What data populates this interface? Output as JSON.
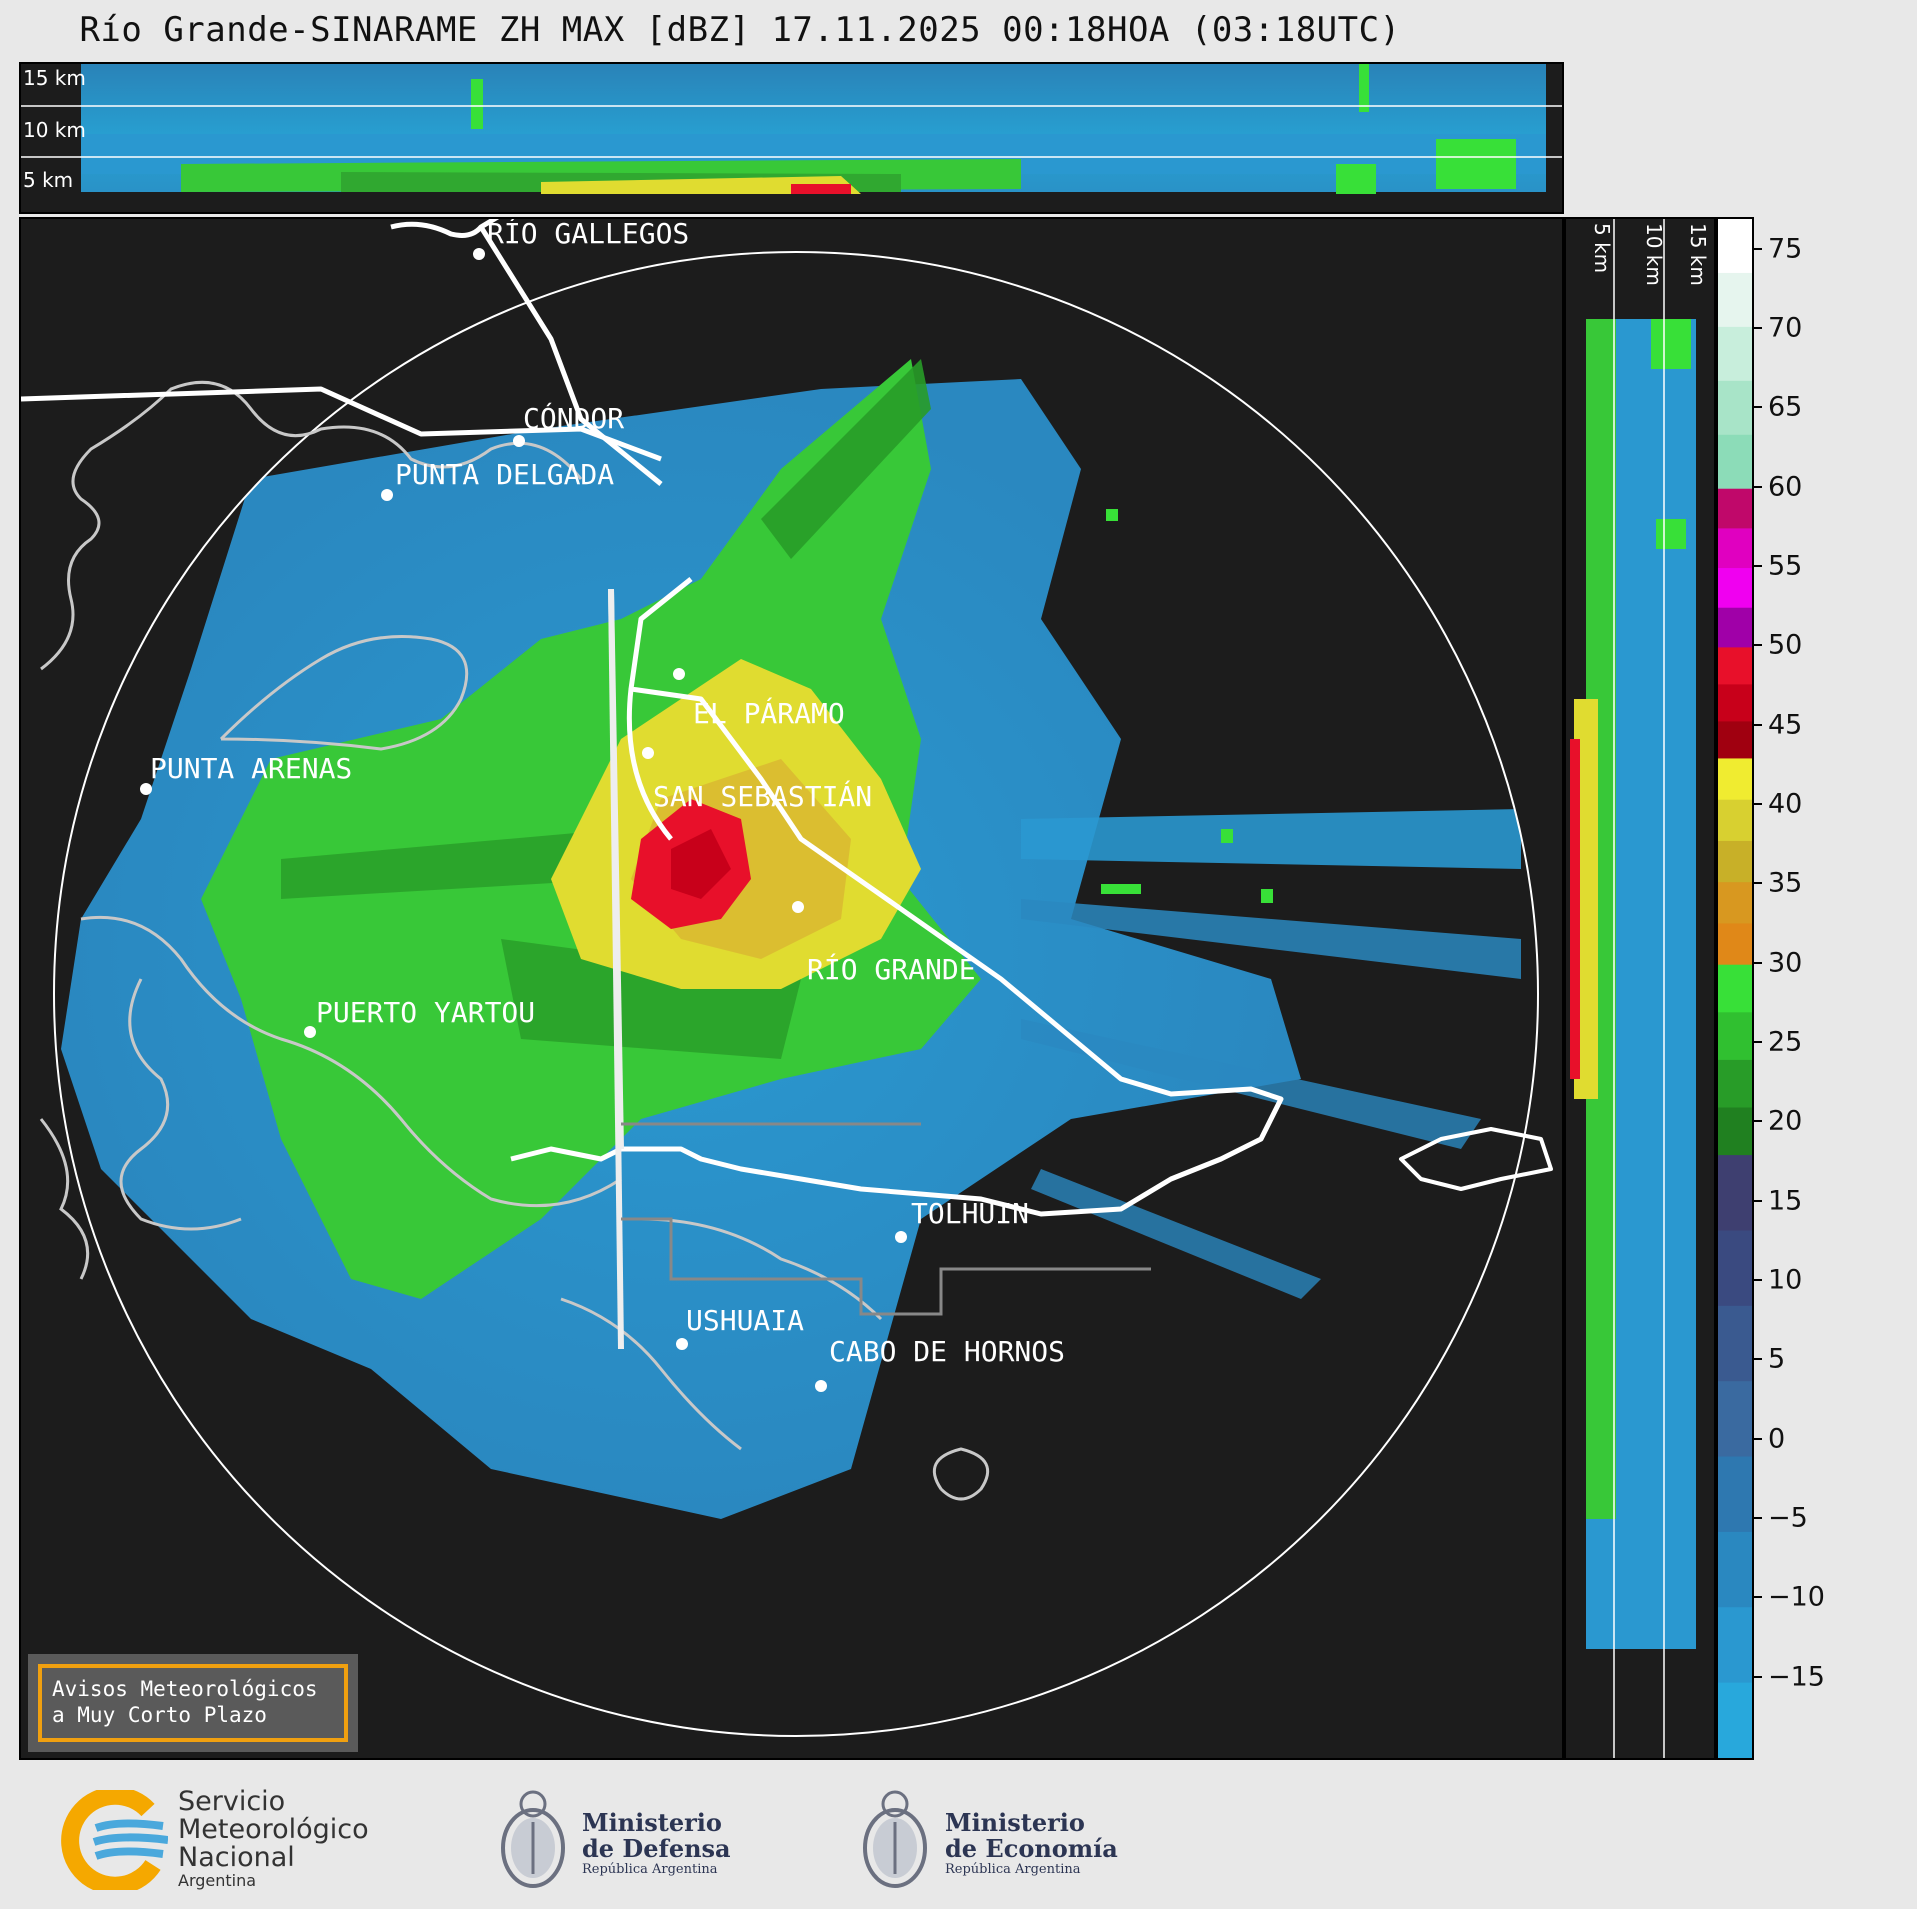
{
  "title": "Río Grande-SINARAME ZH MAX [dBZ] 17.11.2025 00:18HOA (03:18UTC)",
  "altitude_labels": [
    "15 km",
    "10 km",
    "5 km"
  ],
  "altitude_labels_side": [
    "5 km",
    "10 km",
    "15 km"
  ],
  "places": [
    {
      "name": "RÍO GALLEGOS"
    },
    {
      "name": "CÓNDOR"
    },
    {
      "name": "PUNTA DELGADA"
    },
    {
      "name": "PUNTA ARENAS"
    },
    {
      "name": "EL PÁRAMO"
    },
    {
      "name": "SAN SEBASTIÁN"
    },
    {
      "name": "RÍO GRANDE"
    },
    {
      "name": "PUERTO YARTOU"
    },
    {
      "name": "TOLHUIN"
    },
    {
      "name": "USHUAIA"
    },
    {
      "name": "CABO DE HORNOS"
    }
  ],
  "colorbar": {
    "unit": "dBZ",
    "ticks": [
      75,
      70,
      65,
      60,
      55,
      50,
      45,
      40,
      35,
      30,
      25,
      20,
      15,
      10,
      5,
      0,
      -5,
      -10,
      -15
    ],
    "tick_labels": [
      "75",
      "70",
      "65",
      "60",
      "55",
      "50",
      "45",
      "40",
      "35",
      "30",
      "25",
      "20",
      "15",
      "10",
      "5",
      "0",
      "−5",
      "−10",
      "−15"
    ],
    "range": [
      -20,
      77
    ],
    "stops": [
      {
        "from": 60,
        "to": 77,
        "colors": [
          "#ffffff",
          "#e6f5ee",
          "#c8eedc",
          "#a8e4c8",
          "#8cdcb8"
        ]
      },
      {
        "from": 50,
        "to": 60,
        "colors": [
          "#c0086a",
          "#e000c0",
          "#f000f0",
          "#a000a8"
        ]
      },
      {
        "from": 43,
        "to": 50,
        "colors": [
          "#e8102a",
          "#c8001a",
          "#a00010"
        ]
      },
      {
        "from": 30,
        "to": 43,
        "colors": [
          "#f0ec30",
          "#d8d030",
          "#c8b028",
          "#d89820",
          "#e08818"
        ]
      },
      {
        "from": 18,
        "to": 30,
        "colors": [
          "#38e038",
          "#30c030",
          "#289c28",
          "#208020"
        ]
      },
      {
        "from": -20,
        "to": 18,
        "colors": [
          "#3e3f70",
          "#3a4a80",
          "#3a5a90",
          "#3a6aa0",
          "#2e78b0",
          "#2a88c0",
          "#2a98d0",
          "#28a8dc"
        ]
      }
    ]
  },
  "warning": {
    "line1": "Avisos Meteorológicos",
    "line2": "a Muy Corto Plazo"
  },
  "logos": {
    "smn": {
      "line1": "Servicio",
      "line2": "Meteorológico",
      "line3": "Nacional",
      "line4": "Argentina"
    },
    "defensa": {
      "line1": "Ministerio",
      "line2": "de Defensa",
      "line3": "República Argentina"
    },
    "economia": {
      "line1": "Ministerio",
      "line2": "de Economía",
      "line3": "República Argentina"
    }
  }
}
